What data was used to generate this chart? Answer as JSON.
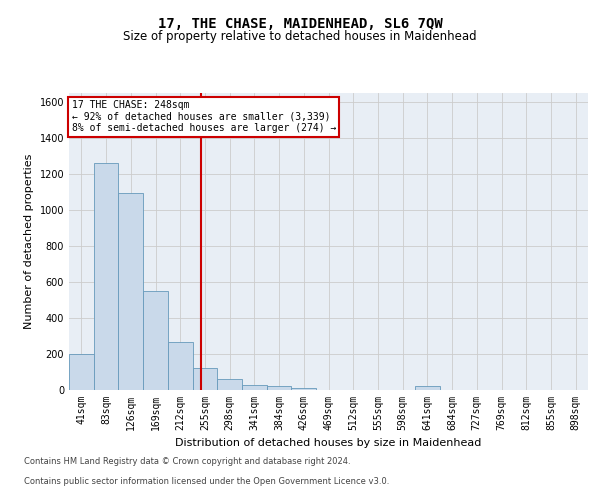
{
  "title": "17, THE CHASE, MAIDENHEAD, SL6 7QW",
  "subtitle": "Size of property relative to detached houses in Maidenhead",
  "xlabel": "Distribution of detached houses by size in Maidenhead",
  "ylabel": "Number of detached properties",
  "footer_line1": "Contains HM Land Registry data © Crown copyright and database right 2024.",
  "footer_line2": "Contains public sector information licensed under the Open Government Licence v3.0.",
  "annotation_line1": "17 THE CHASE: 248sqm",
  "annotation_line2": "← 92% of detached houses are smaller (3,339)",
  "annotation_line3": "8% of semi-detached houses are larger (274) →",
  "bar_color": "#c9d9ea",
  "bar_edge_color": "#6699bb",
  "vline_color": "#cc0000",
  "categories": [
    "41sqm",
    "83sqm",
    "126sqm",
    "169sqm",
    "212sqm",
    "255sqm",
    "298sqm",
    "341sqm",
    "384sqm",
    "426sqm",
    "469sqm",
    "512sqm",
    "555sqm",
    "598sqm",
    "641sqm",
    "684sqm",
    "727sqm",
    "769sqm",
    "812sqm",
    "855sqm",
    "898sqm"
  ],
  "values": [
    200,
    1260,
    1090,
    550,
    265,
    120,
    60,
    30,
    20,
    10,
    0,
    0,
    0,
    0,
    20,
    0,
    0,
    0,
    0,
    0,
    0
  ],
  "ylim": [
    0,
    1650
  ],
  "yticks": [
    0,
    200,
    400,
    600,
    800,
    1000,
    1200,
    1400,
    1600
  ],
  "grid_color": "#cccccc",
  "bg_color": "#e8eef5",
  "fig_bg_color": "#ffffff",
  "title_fontsize": 10,
  "subtitle_fontsize": 8.5,
  "tick_fontsize": 7,
  "ylabel_fontsize": 8,
  "xlabel_fontsize": 8,
  "vline_x": 4.85
}
